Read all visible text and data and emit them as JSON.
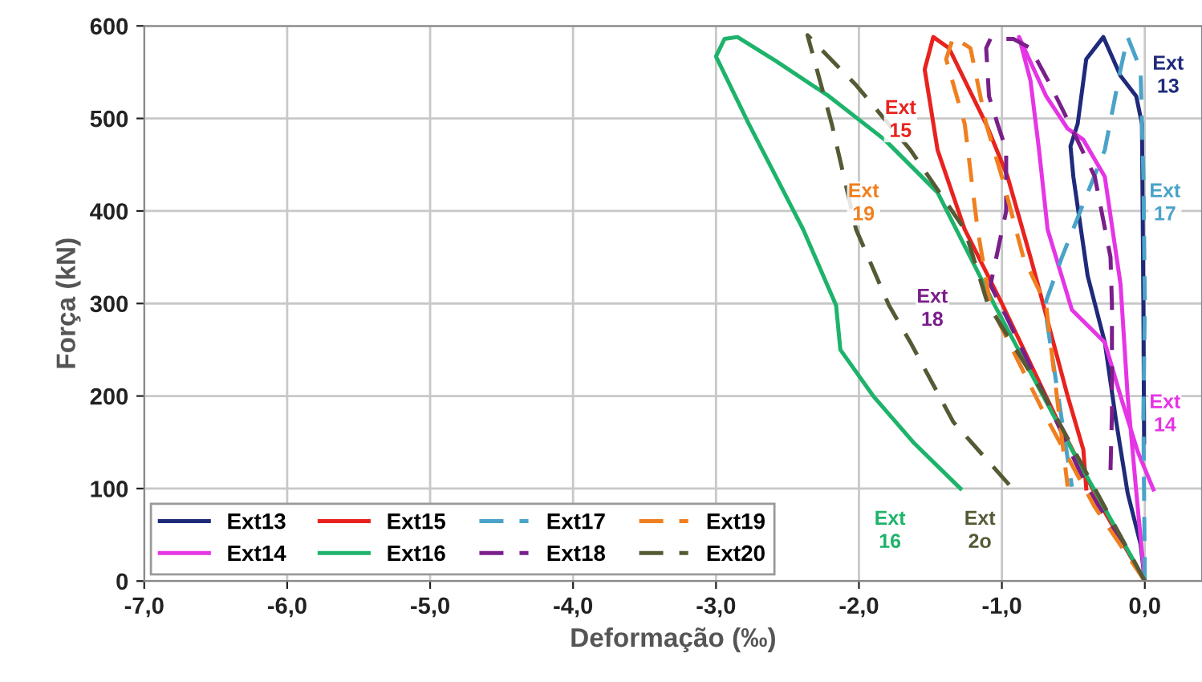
{
  "chart_data": {
    "type": "line",
    "xlabel": "Deformação (‰)",
    "ylabel": "Força (kN)",
    "xlim": [
      -7,
      0.4
    ],
    "xticks": [
      {
        "value": -7,
        "label": "-7,0"
      },
      {
        "value": -6,
        "label": "-6,0"
      },
      {
        "value": -5,
        "label": "-5,0"
      },
      {
        "value": -4,
        "label": "-4,0"
      },
      {
        "value": -3,
        "label": "-3,0"
      },
      {
        "value": -2,
        "label": "-2,0"
      },
      {
        "value": -1,
        "label": "-1,0"
      },
      {
        "value": 0,
        "label": "0,0"
      }
    ],
    "ylim": [
      0,
      600
    ],
    "yticks": [
      0,
      100,
      200,
      300,
      400,
      500,
      600
    ],
    "grid": true,
    "legend": "bottom left",
    "series": [
      {
        "name": "Ext13",
        "color": "#1f2a7a",
        "line_style": "solid",
        "x": [
          0,
          -0.03,
          -0.12,
          -0.2,
          -0.28,
          -0.4,
          -0.5,
          -0.52,
          -0.47,
          -0.41,
          -0.29,
          -0.17,
          -0.06,
          -0.02,
          -0.01,
          -0.005
        ],
        "values": [
          0,
          40,
          95,
          172,
          258,
          330,
          437,
          470,
          494,
          564,
          588,
          546,
          524,
          494,
          298,
          150
        ]
      },
      {
        "name": "Ext14",
        "color": "#e535e5",
        "line_style": "solid",
        "x": [
          0,
          -0.05,
          -0.12,
          -0.17,
          -0.28,
          -0.43,
          -0.54,
          -0.69,
          -0.88,
          -0.8,
          -0.74,
          -0.68,
          -0.51,
          -0.28,
          -0.17,
          -0.05,
          0.06
        ],
        "values": [
          0,
          80,
          200,
          321,
          437,
          477,
          489,
          524,
          588,
          541,
          466,
          380,
          293,
          258,
          200,
          140,
          99
        ]
      },
      {
        "name": "Ext15",
        "color": "#e8231f",
        "line_style": "solid",
        "x": [
          0,
          -0.3,
          -0.6,
          -1.0,
          -1.26,
          -1.45,
          -1.54,
          -1.48,
          -1.37,
          -1.11,
          -0.96,
          -0.8,
          -0.74,
          -0.54,
          -0.43,
          -0.41
        ],
        "values": [
          0,
          80,
          170,
          300,
          380,
          466,
          553,
          588,
          576,
          494,
          437,
          350,
          316,
          200,
          142,
          100
        ]
      },
      {
        "name": "Ext16",
        "color": "#1db36b",
        "line_style": "solid",
        "x": [
          0,
          -0.25,
          -0.51,
          -0.78,
          -1.05,
          -1.45,
          -1.82,
          -2.21,
          -2.58,
          -2.85,
          -2.94,
          -3.0,
          -2.77,
          -2.39,
          -2.16,
          -2.13,
          -1.9,
          -1.62,
          -1.29
        ],
        "values": [
          0,
          70,
          142,
          220,
          298,
          420,
          477,
          524,
          562,
          588,
          586,
          567,
          494,
          380,
          298,
          250,
          200,
          150,
          100
        ]
      },
      {
        "name": "Ext17",
        "color": "#4aa3c8",
        "line_style": "dashed",
        "x": [
          0,
          -0.01,
          0,
          -0.01,
          -0.03,
          -0.12,
          -0.17,
          -0.28,
          -0.43,
          -0.58,
          -0.69,
          -0.69,
          -0.51
        ],
        "values": [
          0,
          180,
          300,
          437,
          553,
          588,
          553,
          466,
          408,
          350,
          303,
          286,
          102
        ]
      },
      {
        "name": "Ext18",
        "color": "#7a1f8a",
        "line_style": "dashed",
        "x": [
          0,
          -0.4,
          -0.7,
          -0.95,
          -1.08,
          -0.97,
          -0.97,
          -1.03,
          -1.09,
          -1.11,
          -1.08,
          -0.92,
          -0.8,
          -0.66,
          -0.51,
          -0.35,
          -0.24,
          -0.23,
          -0.23,
          -0.24
        ],
        "values": [
          0,
          100,
          200,
          280,
          320,
          400,
          466,
          494,
          524,
          576,
          586,
          586,
          576,
          536,
          489,
          437,
          350,
          298,
          182,
          120
        ]
      },
      {
        "name": "Ext19",
        "color": "#f07f1f",
        "line_style": "dashed",
        "x": [
          0,
          -0.35,
          -0.7,
          -1.08,
          -1.17,
          -1.26,
          -1.39,
          -1.34,
          -1.22,
          -1.11,
          -1.0,
          -0.85,
          -0.69,
          -0.66,
          -0.54
        ],
        "values": [
          0,
          80,
          180,
          298,
          380,
          494,
          564,
          588,
          576,
          494,
          437,
          350,
          298,
          258,
          102
        ]
      },
      {
        "name": "Ext20",
        "color": "#555a35",
        "line_style": "dashed",
        "x": [
          0,
          -0.35,
          -0.7,
          -1.1,
          -1.26,
          -1.64,
          -2.02,
          -2.36,
          -2.19,
          -2.02,
          -1.79,
          -1.64,
          -1.34,
          -0.92
        ],
        "values": [
          0,
          100,
          200,
          300,
          380,
          466,
          536,
          590,
          494,
          380,
          298,
          258,
          172,
          99
        ]
      }
    ],
    "annotations": [
      "Ext\n13",
      "Ext\n14",
      "Ext\n15",
      "Ext\n16",
      "Ext\n17",
      "Ext\n18",
      "Ext\n19",
      "Ext\n2o"
    ]
  }
}
